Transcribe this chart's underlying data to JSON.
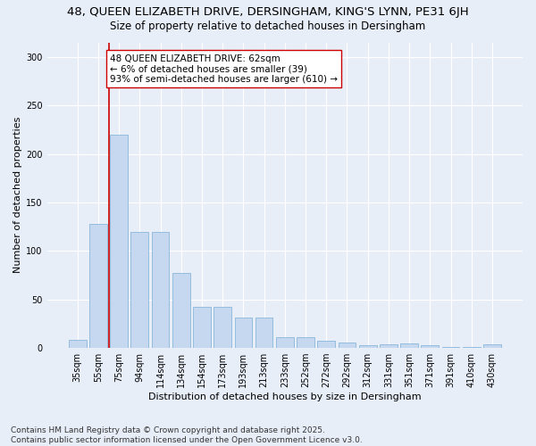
{
  "title_line1": "48, QUEEN ELIZABETH DRIVE, DERSINGHAM, KING'S LYNN, PE31 6JH",
  "title_line2": "Size of property relative to detached houses in Dersingham",
  "xlabel": "Distribution of detached houses by size in Dersingham",
  "ylabel": "Number of detached properties",
  "categories": [
    "35sqm",
    "55sqm",
    "75sqm",
    "94sqm",
    "114sqm",
    "134sqm",
    "154sqm",
    "173sqm",
    "193sqm",
    "213sqm",
    "233sqm",
    "252sqm",
    "272sqm",
    "292sqm",
    "312sqm",
    "331sqm",
    "351sqm",
    "371sqm",
    "391sqm",
    "410sqm",
    "430sqm"
  ],
  "values": [
    8,
    128,
    220,
    120,
    120,
    77,
    42,
    42,
    31,
    31,
    11,
    11,
    7,
    6,
    3,
    4,
    5,
    3,
    1,
    1,
    4
  ],
  "bar_color": "#c5d8f0",
  "bar_edge_color": "#7aaed6",
  "bar_edge_width": 0.5,
  "vline_x": 1.5,
  "vline_color": "#cc0000",
  "annotation_text": "48 QUEEN ELIZABETH DRIVE: 62sqm\n← 6% of detached houses are smaller (39)\n93% of semi-detached houses are larger (610) →",
  "annotation_box_color": "#ffffff",
  "annotation_box_edge_color": "#cc0000",
  "ylim": [
    0,
    315
  ],
  "yticks": [
    0,
    50,
    100,
    150,
    200,
    250,
    300
  ],
  "background_color": "#e8eef8",
  "grid_color": "#ffffff",
  "footer_line1": "Contains HM Land Registry data © Crown copyright and database right 2025.",
  "footer_line2": "Contains public sector information licensed under the Open Government Licence v3.0.",
  "title_fontsize": 9.5,
  "subtitle_fontsize": 8.5,
  "axis_label_fontsize": 8,
  "tick_fontsize": 7,
  "annotation_fontsize": 7.5,
  "footer_fontsize": 6.5
}
